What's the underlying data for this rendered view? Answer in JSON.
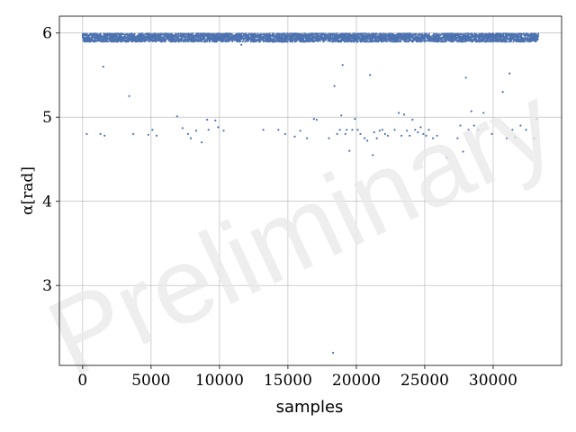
{
  "chart_data": {
    "type": "scatter",
    "title": "",
    "xlabel": "samples",
    "ylabel": "α[rad]",
    "xlim": [
      -1700,
      35000
    ],
    "ylim": [
      2.05,
      6.2
    ],
    "xticks": [
      0,
      5000,
      10000,
      15000,
      20000,
      25000,
      30000
    ],
    "yticks": [
      3,
      4,
      5,
      6
    ],
    "grid": true,
    "legend": "none",
    "watermark": "Preliminary",
    "colors": {
      "points": "#4c72b0",
      "grid": "#b0b0b0",
      "axes": "#000000"
    },
    "band": {
      "x_start": 0,
      "x_end": 33300,
      "y_center": 5.945,
      "y_spread": 0.05,
      "density": 4800
    },
    "outliers": {
      "x": [
        300,
        1300,
        1500,
        1600,
        3400,
        3700,
        4000,
        4800,
        5100,
        5400,
        6900,
        7300,
        7700,
        7900,
        8300,
        8700,
        9100,
        9200,
        9700,
        9900,
        10300,
        11600,
        13200,
        14300,
        14800,
        15500,
        15900,
        16400,
        16900,
        17100,
        18000,
        18300,
        18400,
        18600,
        18800,
        18900,
        19000,
        19200,
        19300,
        19500,
        19700,
        19900,
        20100,
        20300,
        20600,
        20800,
        21000,
        21200,
        21300,
        21500,
        21700,
        21900,
        22100,
        22300,
        22800,
        23100,
        23300,
        23500,
        23700,
        23900,
        24100,
        24300,
        24500,
        24700,
        24900,
        25100,
        25300,
        25600,
        25900,
        26600,
        27400,
        27600,
        27800,
        28000,
        28200,
        28400,
        28600,
        28900,
        29300,
        29900,
        30700,
        31000,
        31200,
        31400,
        31600,
        32000,
        32400,
        33000,
        33200
      ],
      "y": [
        4.8,
        4.8,
        5.6,
        4.78,
        5.25,
        4.8,
        5.9,
        4.79,
        4.85,
        4.78,
        5.01,
        4.87,
        4.8,
        4.75,
        4.84,
        4.7,
        4.97,
        4.85,
        4.96,
        4.88,
        4.84,
        5.86,
        4.85,
        4.85,
        4.8,
        4.77,
        4.84,
        4.75,
        4.98,
        4.97,
        4.75,
        2.2,
        5.37,
        4.8,
        4.85,
        5.02,
        5.62,
        4.8,
        4.85,
        4.6,
        4.85,
        4.98,
        4.85,
        4.8,
        4.75,
        4.72,
        5.5,
        4.55,
        4.82,
        4.75,
        4.84,
        4.85,
        4.8,
        4.78,
        4.85,
        5.05,
        4.78,
        5.03,
        4.84,
        4.78,
        4.97,
        4.85,
        4.82,
        4.88,
        4.8,
        4.78,
        4.85,
        4.75,
        4.78,
        4.52,
        4.75,
        4.9,
        4.59,
        5.47,
        4.85,
        5.07,
        4.9,
        4.85,
        5.05,
        4.8,
        5.3,
        4.75,
        5.52,
        4.85,
        4.76,
        4.9,
        4.85,
        4.75,
        4.98
      ]
    }
  }
}
